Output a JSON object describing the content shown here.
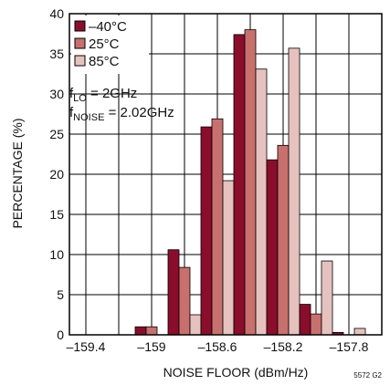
{
  "chart_data": {
    "type": "bar",
    "xlabel": "NOISE FLOOR (dBm/Hz)",
    "ylabel": "PERCENTAGE (%)",
    "ylim": [
      0,
      40
    ],
    "xlim": [
      -159.5,
      -157.6
    ],
    "x_ticks": [
      -159.4,
      -159.0,
      -158.6,
      -158.2,
      -157.8
    ],
    "x_tick_labels": [
      "–159.4",
      "–159",
      "–158.6",
      "–158.2",
      "–157.8"
    ],
    "y_ticks": [
      0,
      5,
      10,
      15,
      20,
      25,
      30,
      35,
      40
    ],
    "grid": true,
    "legend_position": "top-left",
    "bin_width": 0.2,
    "categories": [
      -159.2,
      -159.0,
      -158.8,
      -158.6,
      -158.4,
      -158.2,
      -158.0,
      -157.8,
      -157.6
    ],
    "series": [
      {
        "name": "–40°C",
        "color": "#8b0d2c",
        "values": [
          0,
          1.0,
          10.6,
          25.9,
          37.4,
          21.8,
          3.8,
          0.3,
          0
        ]
      },
      {
        "name": "25°C",
        "color": "#c8706e",
        "values": [
          0,
          1.0,
          8.4,
          26.9,
          38.0,
          23.6,
          2.6,
          0,
          0
        ]
      },
      {
        "name": "85°C",
        "color": "#e6c2bf",
        "values": [
          0,
          0,
          2.5,
          19.2,
          33.1,
          35.7,
          9.2,
          0.8,
          0
        ]
      }
    ],
    "annotations": {
      "flo_main": "f",
      "flo_sub": "LO",
      "flo_val": " = 2GHz",
      "fnoise_main": "f",
      "fnoise_sub": "NOISE",
      "fnoise_val": " = 2.02GHz"
    },
    "figure_id": "5572 G2"
  }
}
